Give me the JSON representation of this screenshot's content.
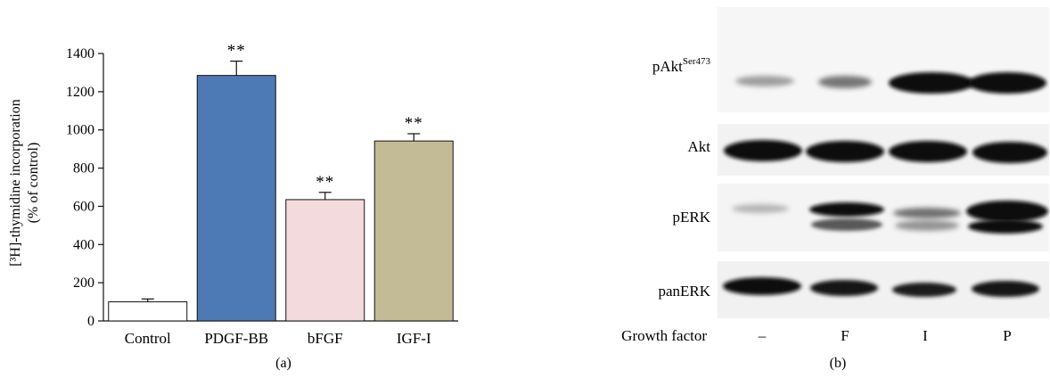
{
  "chart_data": [
    {
      "type": "bar",
      "panel_label": "(a)",
      "ylabel_line1": "[³H]-thymidine incorporation",
      "ylabel_line2": "(% of control)",
      "xlabel": "",
      "ylim": [
        0,
        1400
      ],
      "yticks": [
        0,
        200,
        400,
        600,
        800,
        1000,
        1200,
        1400
      ],
      "categories": [
        "Control",
        "PDGF-BB",
        "bFGF",
        "IGF-I"
      ],
      "values": [
        100,
        1285,
        635,
        942
      ],
      "errors": [
        15,
        75,
        38,
        38
      ],
      "significance": [
        "",
        "**",
        "**",
        "**"
      ],
      "colors": [
        "#ffffff",
        "#4d7ab5",
        "#f2dadd",
        "#c3bb96"
      ],
      "grid": false
    }
  ],
  "blot": {
    "panel_label": "(b)",
    "rows": [
      {
        "label_main": "pAkt",
        "label_sup": "Ser473"
      },
      {
        "label_main": "Akt",
        "label_sup": ""
      },
      {
        "label_main": "pERK",
        "label_sup": ""
      },
      {
        "label_main": "panERK",
        "label_sup": ""
      }
    ],
    "growth_factor_label": "Growth factor",
    "lanes": [
      "–",
      "F",
      "I",
      "P"
    ]
  }
}
